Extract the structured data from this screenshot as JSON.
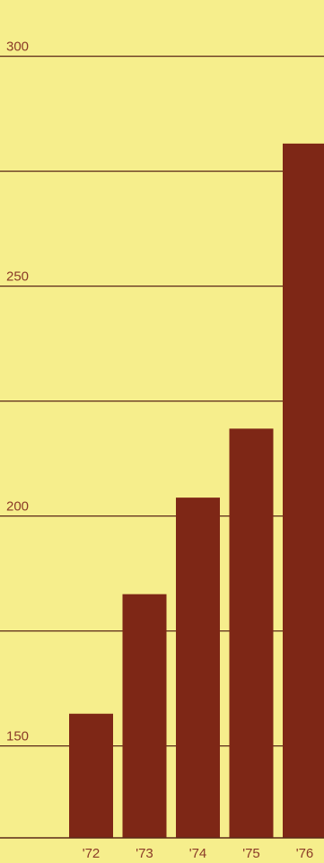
{
  "chart_data": {
    "type": "bar",
    "title": "",
    "xlabel": "",
    "ylabel": "",
    "categories": [
      "'72",
      "'73",
      "'74",
      "'75",
      "'76"
    ],
    "values": [
      157,
      183,
      204,
      219,
      281
    ],
    "ylim": [
      130,
      300
    ],
    "yticks": [
      150,
      200,
      250,
      300
    ],
    "ytick_labels": [
      "150",
      "200",
      "250",
      "300"
    ],
    "gridlines": [
      150,
      175,
      200,
      225,
      250,
      275,
      300
    ],
    "grid": true,
    "colors": {
      "background": "#f6ee8c",
      "bar": "#7e2716",
      "grid": "#5a2818",
      "text": "#8a3a28"
    }
  }
}
